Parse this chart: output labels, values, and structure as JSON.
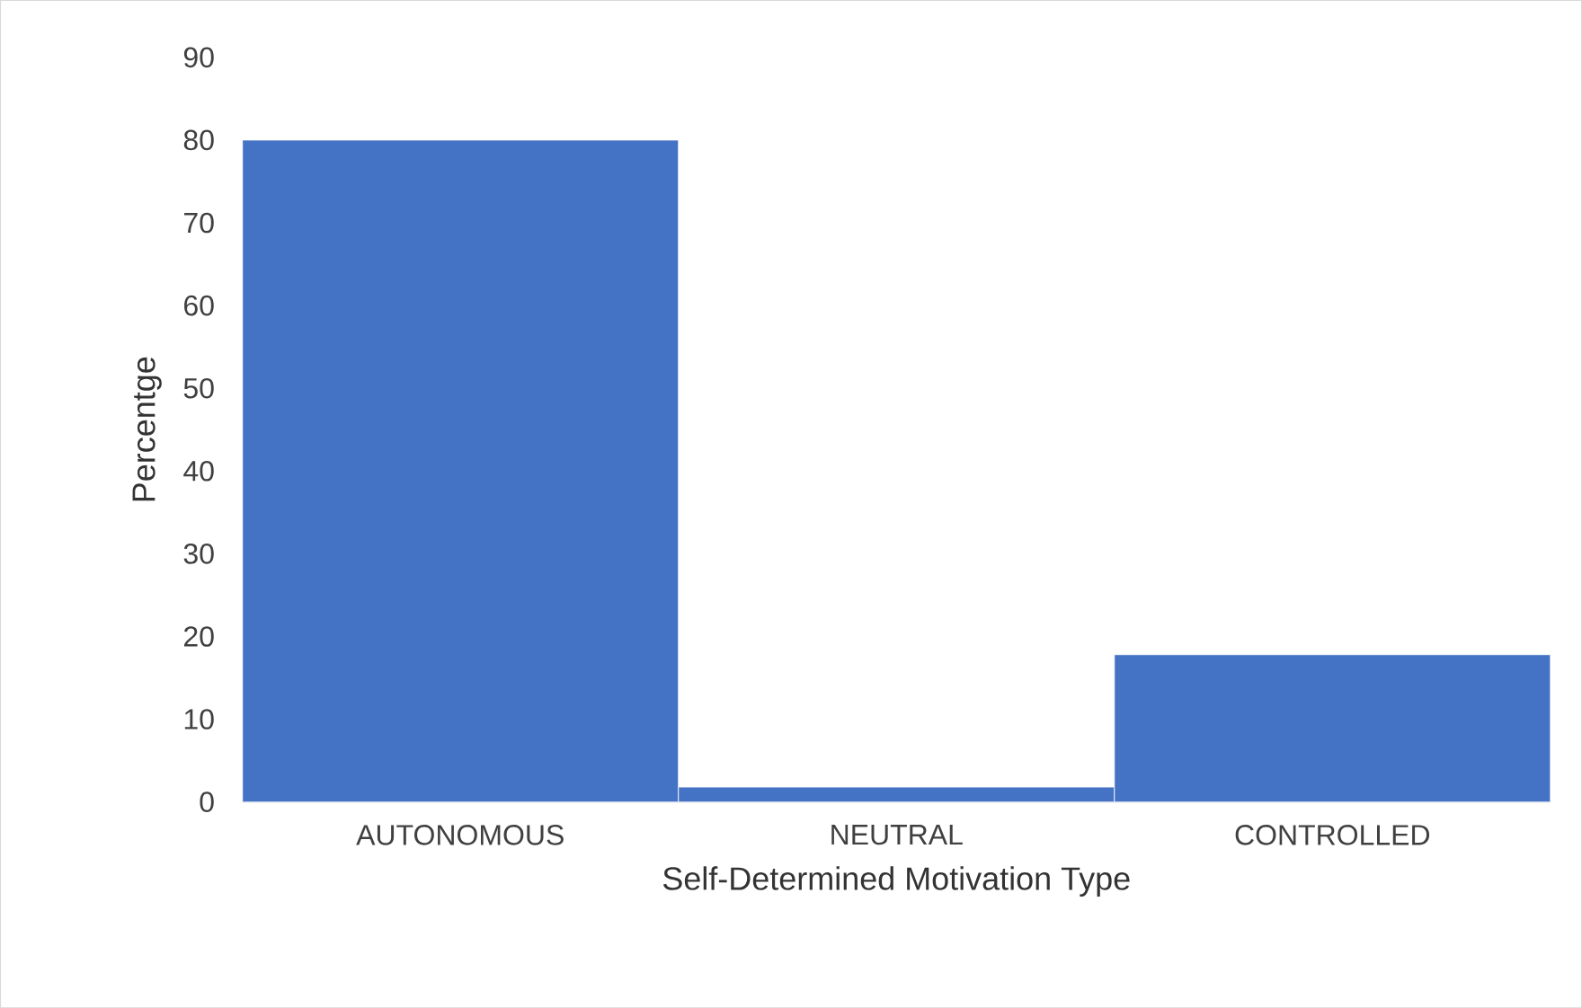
{
  "chart_data": {
    "type": "bar",
    "xlabel": "Self-Determined Motivation Type",
    "ylabel": "Percentge",
    "categories": [
      "AUTONOMOUS",
      "NEUTRAL",
      "CONTROLLED"
    ],
    "values": [
      80,
      1.8,
      17.8
    ],
    "color": "#4472c4",
    "ylim": [
      0,
      90
    ],
    "yticks": [
      0,
      10,
      20,
      30,
      40,
      50,
      60,
      70,
      80,
      90
    ]
  }
}
